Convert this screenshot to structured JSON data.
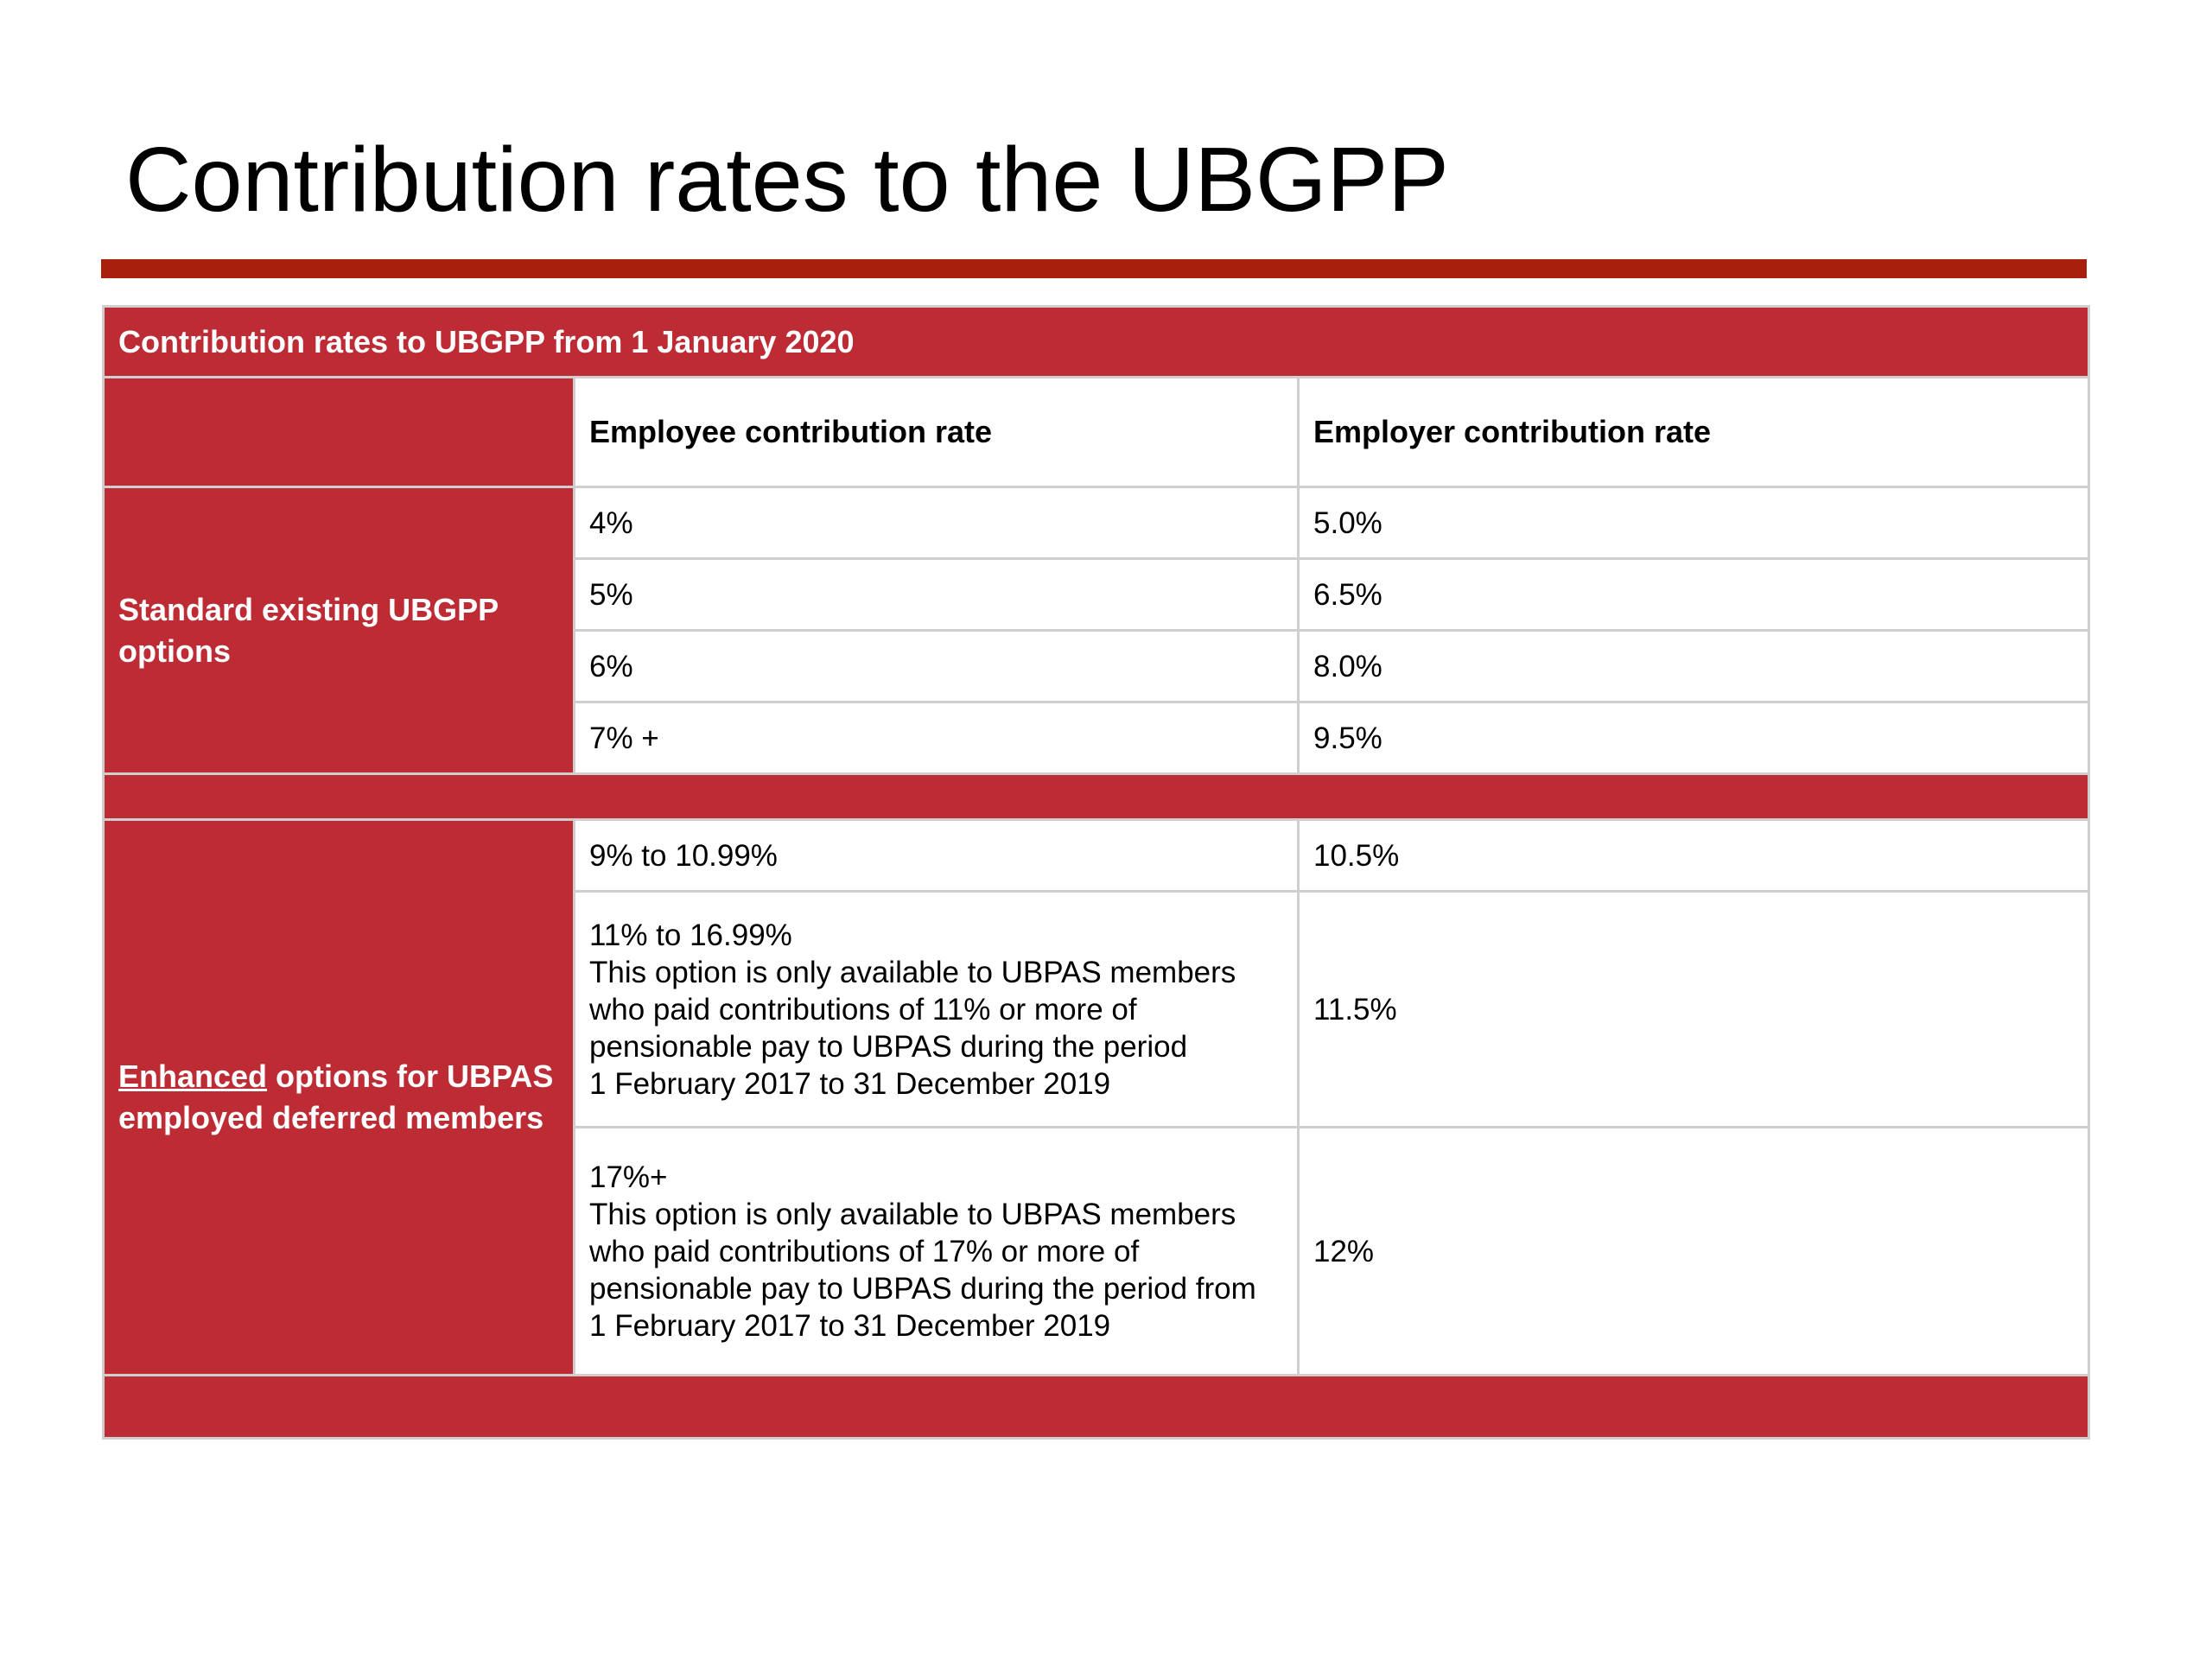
{
  "title": "Contribution rates to the UBGPP",
  "colors": {
    "accent_red": "#bd2b35",
    "title_rule": "#a8200c",
    "grid": "#cfcfcf"
  },
  "table": {
    "caption": "Contribution rates to UBGPP from 1 January 2020",
    "headers": {
      "employee": "Employee contribution rate",
      "employer": "Employer contribution rate"
    },
    "standard": {
      "label": "Standard existing UBGPP options",
      "rows": [
        {
          "employee": "4%",
          "employer": "5.0%"
        },
        {
          "employee": "5%",
          "employer": "6.5%"
        },
        {
          "employee": "6%",
          "employer": "8.0%"
        },
        {
          "employee": "7% +",
          "employer": "9.5%"
        }
      ]
    },
    "enhanced": {
      "label_emphasis": "Enhanced",
      "label_rest": " options for UBPAS employed deferred members",
      "rows": [
        {
          "employee_lines": [
            "9% to 10.99%"
          ],
          "employer": "10.5%"
        },
        {
          "employee_lines": [
            "11% to 16.99%",
            "This option is only available to UBPAS members",
            "who paid contributions of 11% or more of",
            "pensionable pay to UBPAS during the period",
            "1 February 2017 to 31 December 2019"
          ],
          "employer": "11.5%"
        },
        {
          "employee_lines": [
            "17%+",
            "This option is only available to UBPAS members",
            "who paid contributions of 17% or more of",
            "pensionable pay to UBPAS during the period from",
            "1 February 2017 to 31 December 2019"
          ],
          "employer": "12%"
        }
      ]
    }
  }
}
